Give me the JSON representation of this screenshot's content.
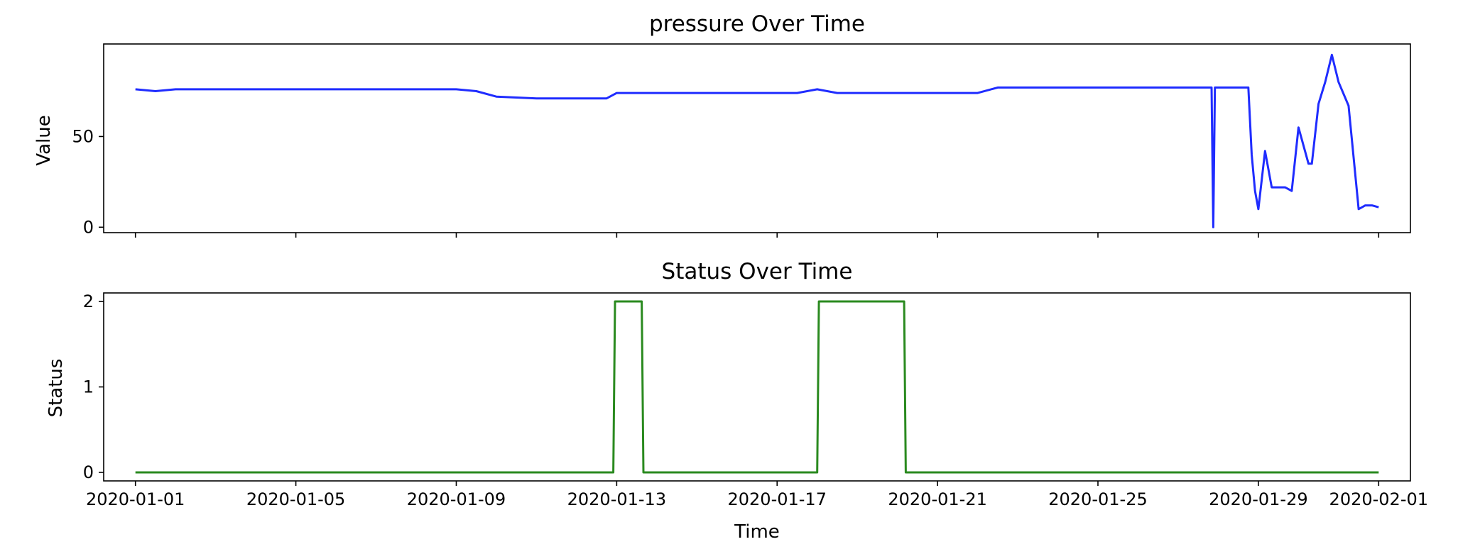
{
  "chart_data": [
    {
      "type": "line",
      "title": "pressure Over Time",
      "xlabel": "",
      "ylabel": "Value",
      "xlim": [
        "2019-12-31 05:00",
        "2020-02-01 19:00"
      ],
      "ylim": [
        -3,
        101
      ],
      "yticks": [
        0,
        50
      ],
      "xticks": [
        "2020-01-01",
        "2020-01-05",
        "2020-01-09",
        "2020-01-13",
        "2020-01-17",
        "2020-01-21",
        "2020-01-25",
        "2020-01-29",
        "2020-02-01"
      ],
      "show_xtick_labels": false,
      "grid": false,
      "legend": "none",
      "color": "#1f2cff",
      "series": [
        {
          "x": [
            "2020-01-01 00:00",
            "2020-01-01 12:00",
            "2020-01-02 00:00",
            "2020-01-03 00:00",
            "2020-01-04 00:00",
            "2020-01-05 00:00",
            "2020-01-06 00:00",
            "2020-01-07 00:00",
            "2020-01-08 00:00",
            "2020-01-09 00:00",
            "2020-01-09 12:00",
            "2020-01-10 00:00",
            "2020-01-11 00:00",
            "2020-01-11 12:00",
            "2020-01-12 00:00",
            "2020-01-12 18:00",
            "2020-01-13 00:00",
            "2020-01-14 00:00",
            "2020-01-15 00:00",
            "2020-01-16 00:00",
            "2020-01-17 00:00",
            "2020-01-17 12:00",
            "2020-01-18 00:00",
            "2020-01-18 12:00",
            "2020-01-19 00:00",
            "2020-01-20 00:00",
            "2020-01-21 00:00",
            "2020-01-22 00:00",
            "2020-01-22 12:00",
            "2020-01-23 00:00",
            "2020-01-24 00:00",
            "2020-01-25 00:00",
            "2020-01-26 00:00",
            "2020-01-27 00:00",
            "2020-01-27 20:00",
            "2020-01-27 21:00",
            "2020-01-27 22:00",
            "2020-01-28 00:00",
            "2020-01-28 12:00",
            "2020-01-28 18:00",
            "2020-01-28 20:00",
            "2020-01-28 22:00",
            "2020-01-29 00:00",
            "2020-01-29 04:00",
            "2020-01-29 08:00",
            "2020-01-29 12:00",
            "2020-01-29 16:00",
            "2020-01-29 20:00",
            "2020-01-30 00:00",
            "2020-01-30 06:00",
            "2020-01-30 08:00",
            "2020-01-30 12:00",
            "2020-01-30 16:00",
            "2020-01-30 20:00",
            "2020-01-31 00:00",
            "2020-01-31 06:00",
            "2020-01-31 12:00",
            "2020-01-31 16:00",
            "2020-01-31 20:00",
            "2020-02-01 00:00"
          ],
          "values": [
            76,
            75,
            76,
            76,
            76,
            76,
            76,
            76,
            76,
            76,
            75,
            72,
            71,
            71,
            71,
            71,
            74,
            74,
            74,
            74,
            74,
            74,
            76,
            74,
            74,
            74,
            74,
            74,
            77,
            77,
            77,
            77,
            77,
            77,
            77,
            0,
            77,
            77,
            77,
            77,
            40,
            20,
            10,
            42,
            22,
            22,
            22,
            20,
            55,
            35,
            35,
            68,
            80,
            95,
            80,
            67,
            10,
            12,
            12,
            11
          ]
        }
      ]
    },
    {
      "type": "line",
      "title": "Status Over Time",
      "xlabel": "Time",
      "ylabel": "Status",
      "xlim": [
        "2019-12-31 05:00",
        "2020-02-01 19:00"
      ],
      "ylim": [
        -0.1,
        2.1
      ],
      "yticks": [
        0,
        1,
        2
      ],
      "xticks": [
        "2020-01-01",
        "2020-01-05",
        "2020-01-09",
        "2020-01-13",
        "2020-01-17",
        "2020-01-21",
        "2020-01-25",
        "2020-01-29",
        "2020-02-01"
      ],
      "show_xtick_labels": true,
      "grid": false,
      "legend": "none",
      "color": "#2a8a1f",
      "series": [
        {
          "x": [
            "2020-01-01 00:00",
            "2020-01-12 22:00",
            "2020-01-12 23:00",
            "2020-01-13 15:00",
            "2020-01-13 16:00",
            "2020-01-18 00:00",
            "2020-01-18 01:00",
            "2020-01-20 04:00",
            "2020-01-20 05:00",
            "2020-02-01 00:00"
          ],
          "values": [
            0,
            0,
            2,
            2,
            0,
            0,
            2,
            2,
            0,
            0
          ]
        }
      ]
    }
  ]
}
